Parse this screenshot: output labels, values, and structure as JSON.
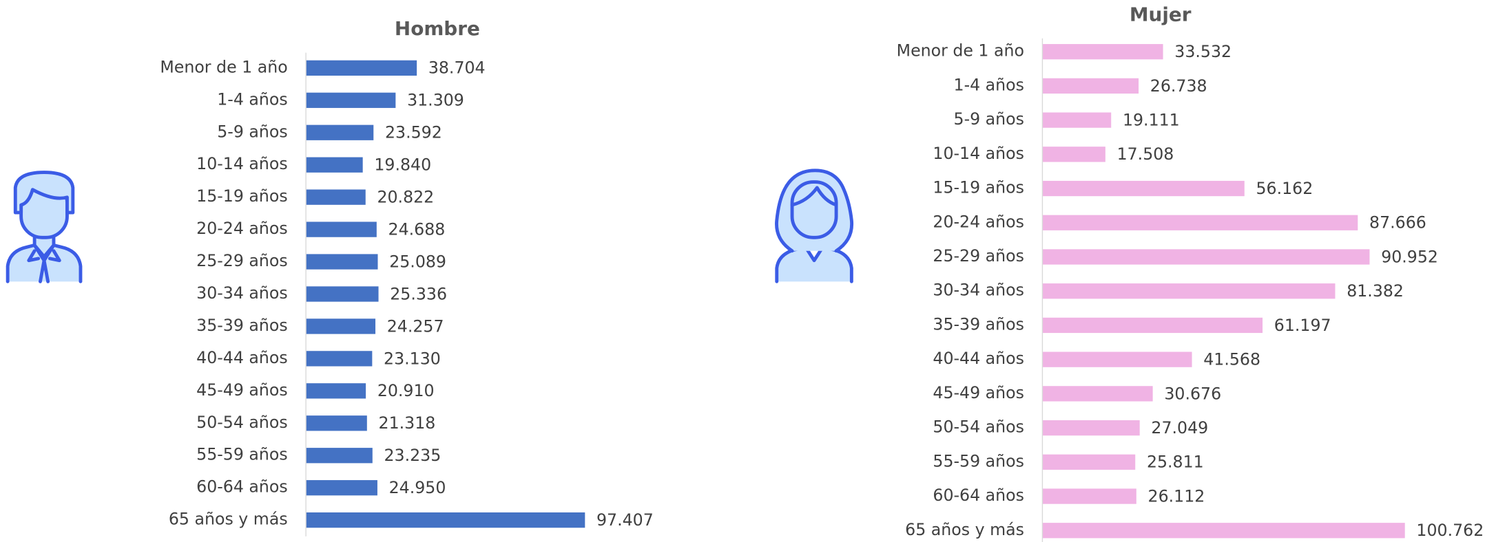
{
  "chart_data": [
    {
      "type": "bar",
      "orientation": "horizontal",
      "title": "Hombre",
      "color": "#4472c4",
      "categories": [
        "Menor de 1 año",
        "1-4 años",
        "5-9 años",
        "10-14 años",
        "15-19 años",
        "20-24 años",
        "25-29 años",
        "30-34 años",
        "35-39 años",
        "40-44 años",
        "45-49 años",
        "50-54 años",
        "55-59 años",
        "60-64 años",
        "65 años y más"
      ],
      "values": [
        38704,
        31309,
        23592,
        19840,
        20822,
        24688,
        25089,
        25336,
        24257,
        23130,
        20910,
        21318,
        23235,
        24950,
        97407
      ],
      "value_labels": [
        "38.704",
        "31.309",
        "23.592",
        "19.840",
        "20.822",
        "24.688",
        "25.089",
        "25.336",
        "24.257",
        "23.130",
        "20.910",
        "21.318",
        "23.235",
        "24.950",
        "97.407"
      ]
    },
    {
      "type": "bar",
      "orientation": "horizontal",
      "title": "Mujer",
      "color": "#f0b3e4",
      "categories": [
        "Menor de 1 año",
        "1-4 años",
        "5-9 años",
        "10-14 años",
        "15-19 años",
        "20-24 años",
        "25-29 años",
        "30-34 años",
        "35-39 años",
        "40-44 años",
        "45-49 años",
        "50-54 años",
        "55-59 años",
        "60-64 años",
        "65 años y más"
      ],
      "values": [
        33532,
        26738,
        19111,
        17508,
        56162,
        87666,
        90952,
        81382,
        61197,
        41568,
        30676,
        27049,
        25811,
        26112,
        100762
      ],
      "value_labels": [
        "33.532",
        "26.738",
        "19.111",
        "17.508",
        "56.162",
        "87.666",
        "90.952",
        "81.382",
        "61.197",
        "41.568",
        "30.676",
        "27.049",
        "25.811",
        "26.112",
        "100.762"
      ]
    }
  ]
}
